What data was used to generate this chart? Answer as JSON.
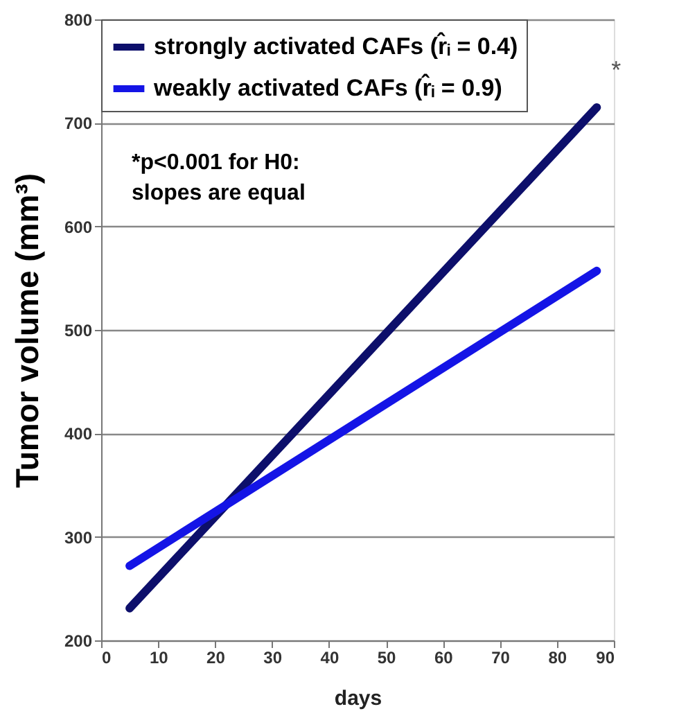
{
  "chart_data": {
    "type": "line",
    "xlabel": "days",
    "ylabel": "Tumor volume (mm³)",
    "x": [
      5,
      87
    ],
    "series": [
      {
        "name": "strongly activated CAFs (r̂ᵢ = 0.4)",
        "color": "#0d0f6b",
        "values": [
          231,
          715
        ]
      },
      {
        "name": "weakly activated CAFs  (r̂ᵢ = 0.9)",
        "color": "#1414e6",
        "values": [
          272,
          557
        ]
      }
    ],
    "xlim": [
      0,
      90
    ],
    "xticks": [
      0,
      10,
      20,
      30,
      40,
      50,
      60,
      70,
      80,
      90
    ],
    "ylim": [
      200,
      800
    ],
    "yticks": [
      200,
      300,
      400,
      500,
      600,
      700,
      800
    ],
    "grid": "y",
    "legend": "top left",
    "marker": "none",
    "line_style": "solid",
    "annotations": [
      "*p<0.001 for H0:\nslopes are equal",
      {
        "text": "*",
        "x": 87,
        "y": 715
      }
    ]
  }
}
